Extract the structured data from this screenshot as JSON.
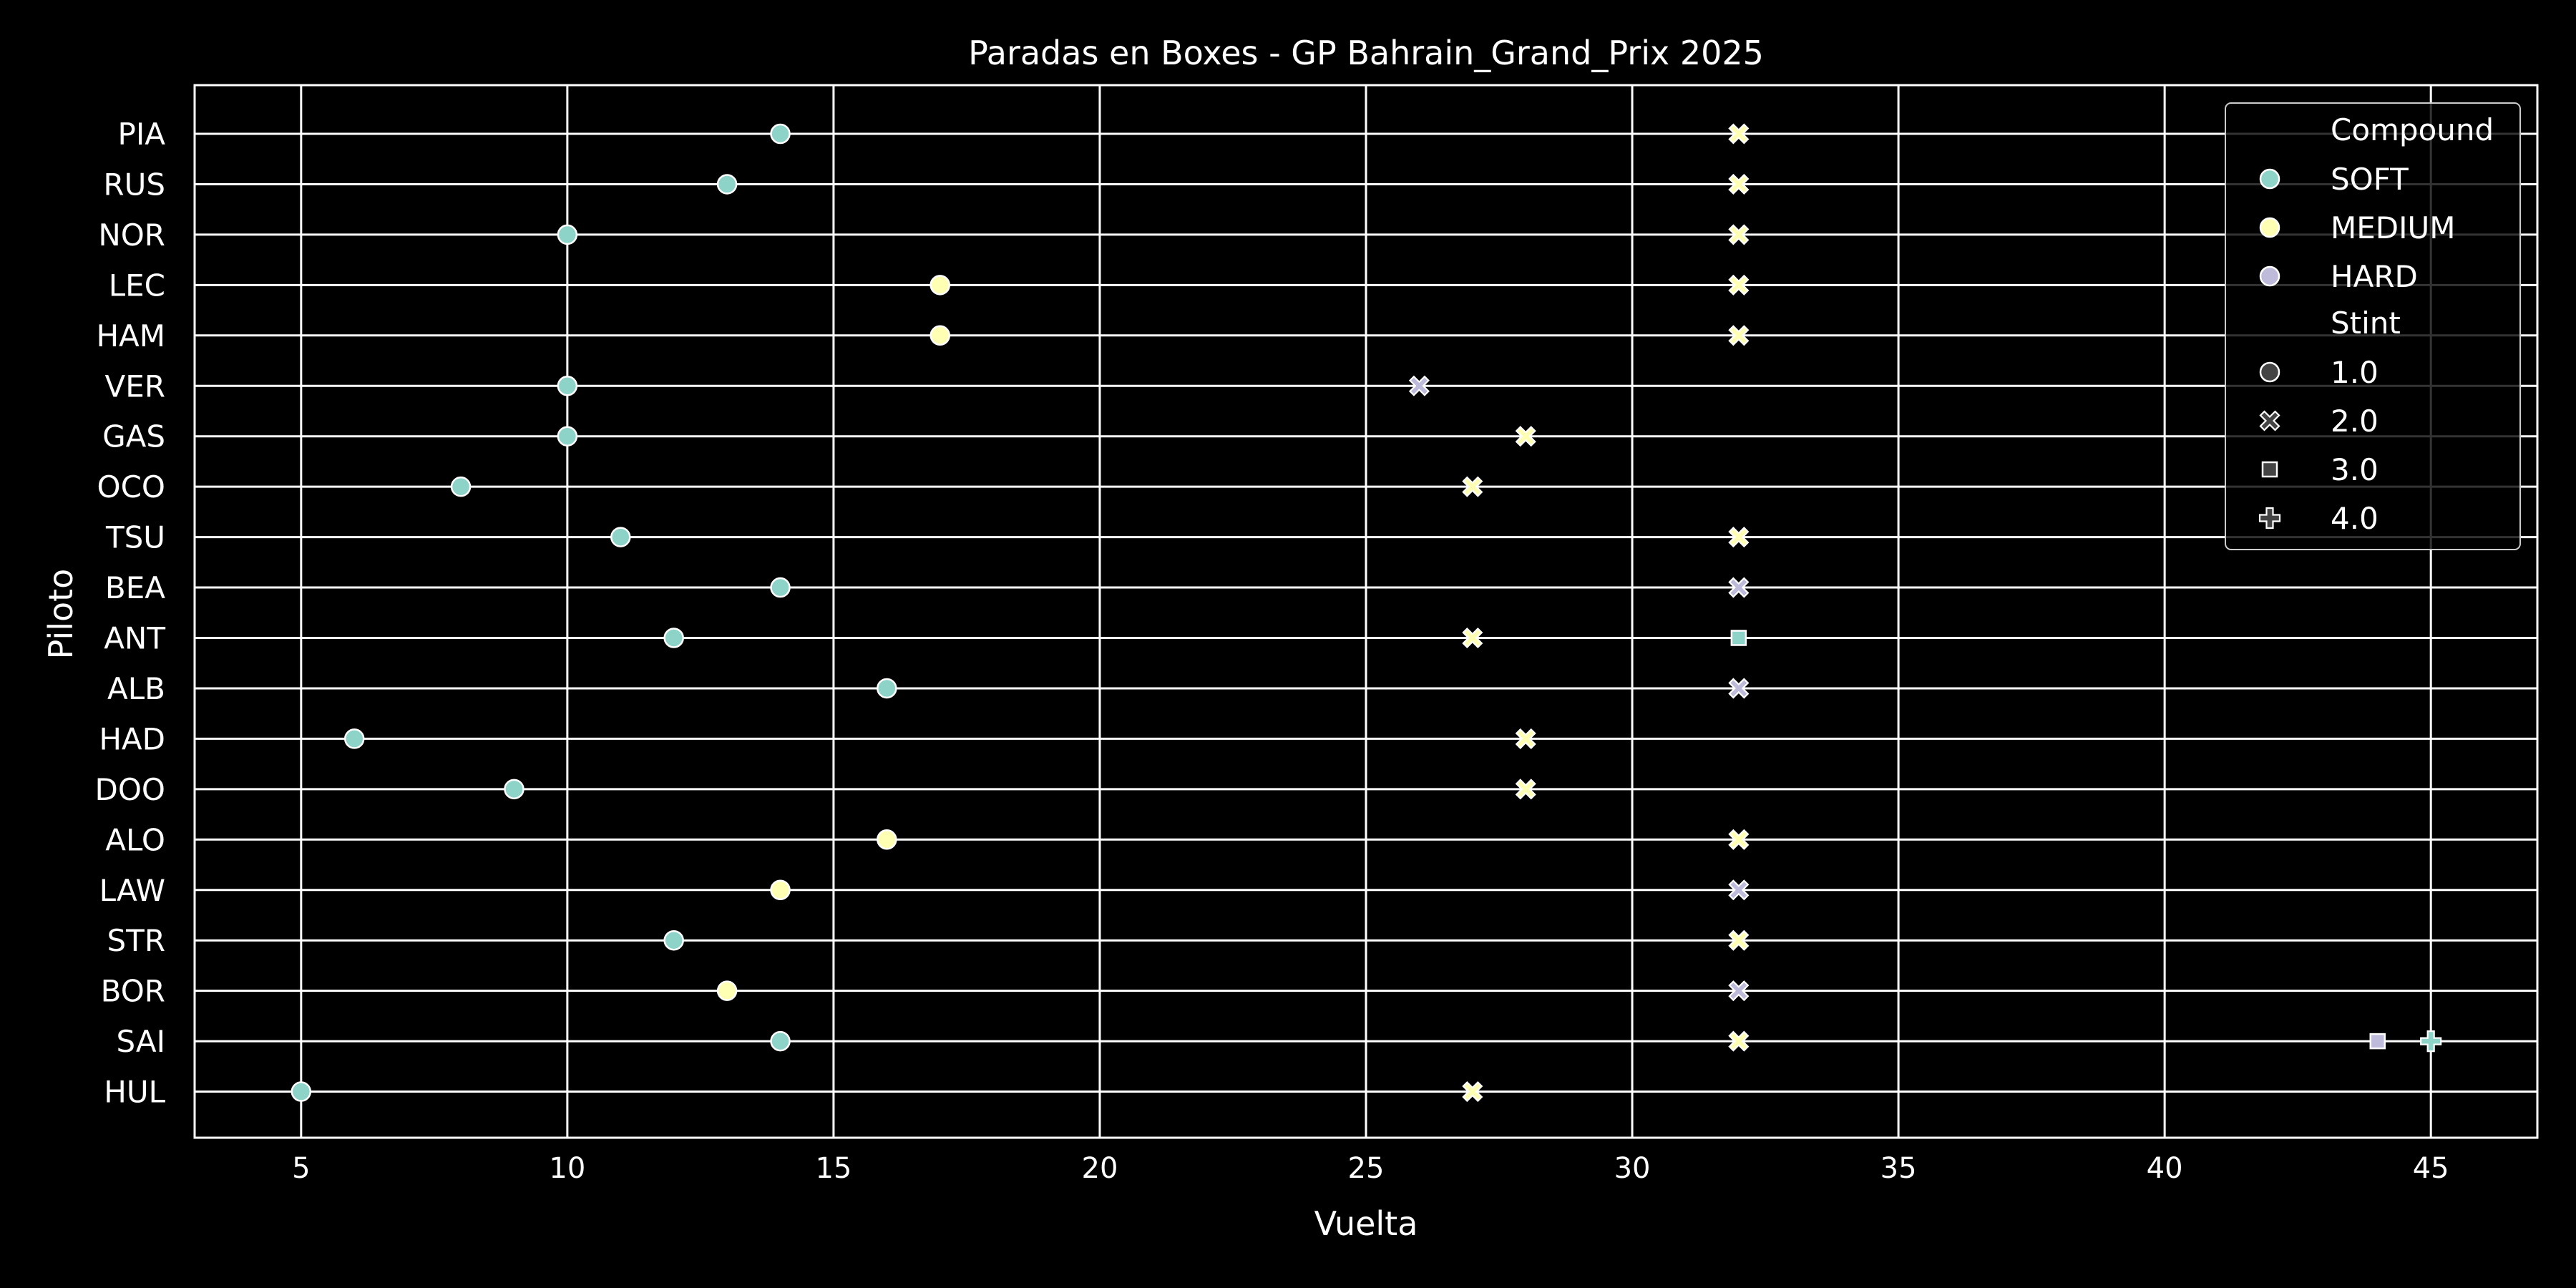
{
  "chart_data": {
    "type": "scatter",
    "title": "Paradas en Boxes - GP Bahrain_Grand_Prix 2025",
    "xlabel": "Vuelta",
    "ylabel": "Piloto",
    "xlim": [
      3,
      47
    ],
    "xticks": [
      5,
      10,
      15,
      20,
      25,
      30,
      35,
      40,
      45
    ],
    "grid": true,
    "legend_position": "top-right",
    "categories": [
      "PIA",
      "RUS",
      "NOR",
      "LEC",
      "HAM",
      "VER",
      "GAS",
      "OCO",
      "TSU",
      "BEA",
      "ANT",
      "ALB",
      "HAD",
      "DOO",
      "ALO",
      "LAW",
      "STR",
      "BOR",
      "SAI",
      "HUL"
    ],
    "colors": {
      "SOFT": "#8dd3c7",
      "MEDIUM": "#ffffb3",
      "HARD": "#bebada",
      "background": "#000000",
      "grid": "#ffffff"
    },
    "legend": {
      "hue_title": "Compound",
      "hue_items": [
        "SOFT",
        "MEDIUM",
        "HARD"
      ],
      "style_title": "Stint",
      "style_items": [
        {
          "label": "1.0",
          "marker": "circle"
        },
        {
          "label": "2.0",
          "marker": "x"
        },
        {
          "label": "3.0",
          "marker": "square"
        },
        {
          "label": "4.0",
          "marker": "plus"
        }
      ]
    },
    "points": [
      {
        "driver": "PIA",
        "lap": 14,
        "compound": "SOFT",
        "stint": 1.0
      },
      {
        "driver": "PIA",
        "lap": 32,
        "compound": "MEDIUM",
        "stint": 2.0
      },
      {
        "driver": "RUS",
        "lap": 13,
        "compound": "SOFT",
        "stint": 1.0
      },
      {
        "driver": "RUS",
        "lap": 32,
        "compound": "MEDIUM",
        "stint": 2.0
      },
      {
        "driver": "NOR",
        "lap": 10,
        "compound": "SOFT",
        "stint": 1.0
      },
      {
        "driver": "NOR",
        "lap": 32,
        "compound": "MEDIUM",
        "stint": 2.0
      },
      {
        "driver": "LEC",
        "lap": 17,
        "compound": "MEDIUM",
        "stint": 1.0
      },
      {
        "driver": "LEC",
        "lap": 32,
        "compound": "MEDIUM",
        "stint": 2.0
      },
      {
        "driver": "HAM",
        "lap": 17,
        "compound": "MEDIUM",
        "stint": 1.0
      },
      {
        "driver": "HAM",
        "lap": 32,
        "compound": "MEDIUM",
        "stint": 2.0
      },
      {
        "driver": "VER",
        "lap": 10,
        "compound": "SOFT",
        "stint": 1.0
      },
      {
        "driver": "VER",
        "lap": 26,
        "compound": "HARD",
        "stint": 2.0
      },
      {
        "driver": "GAS",
        "lap": 10,
        "compound": "SOFT",
        "stint": 1.0
      },
      {
        "driver": "GAS",
        "lap": 28,
        "compound": "MEDIUM",
        "stint": 2.0
      },
      {
        "driver": "OCO",
        "lap": 8,
        "compound": "SOFT",
        "stint": 1.0
      },
      {
        "driver": "OCO",
        "lap": 27,
        "compound": "MEDIUM",
        "stint": 2.0
      },
      {
        "driver": "TSU",
        "lap": 11,
        "compound": "SOFT",
        "stint": 1.0
      },
      {
        "driver": "TSU",
        "lap": 32,
        "compound": "MEDIUM",
        "stint": 2.0
      },
      {
        "driver": "BEA",
        "lap": 14,
        "compound": "SOFT",
        "stint": 1.0
      },
      {
        "driver": "BEA",
        "lap": 32,
        "compound": "HARD",
        "stint": 2.0
      },
      {
        "driver": "ANT",
        "lap": 12,
        "compound": "SOFT",
        "stint": 1.0
      },
      {
        "driver": "ANT",
        "lap": 27,
        "compound": "MEDIUM",
        "stint": 2.0
      },
      {
        "driver": "ANT",
        "lap": 32,
        "compound": "SOFT",
        "stint": 3.0
      },
      {
        "driver": "ALB",
        "lap": 16,
        "compound": "SOFT",
        "stint": 1.0
      },
      {
        "driver": "ALB",
        "lap": 32,
        "compound": "HARD",
        "stint": 2.0
      },
      {
        "driver": "HAD",
        "lap": 6,
        "compound": "SOFT",
        "stint": 1.0
      },
      {
        "driver": "HAD",
        "lap": 28,
        "compound": "MEDIUM",
        "stint": 2.0
      },
      {
        "driver": "DOO",
        "lap": 9,
        "compound": "SOFT",
        "stint": 1.0
      },
      {
        "driver": "DOO",
        "lap": 28,
        "compound": "MEDIUM",
        "stint": 2.0
      },
      {
        "driver": "ALO",
        "lap": 16,
        "compound": "MEDIUM",
        "stint": 1.0
      },
      {
        "driver": "ALO",
        "lap": 32,
        "compound": "MEDIUM",
        "stint": 2.0
      },
      {
        "driver": "LAW",
        "lap": 14,
        "compound": "MEDIUM",
        "stint": 1.0
      },
      {
        "driver": "LAW",
        "lap": 32,
        "compound": "HARD",
        "stint": 2.0
      },
      {
        "driver": "STR",
        "lap": 12,
        "compound": "SOFT",
        "stint": 1.0
      },
      {
        "driver": "STR",
        "lap": 32,
        "compound": "MEDIUM",
        "stint": 2.0
      },
      {
        "driver": "BOR",
        "lap": 13,
        "compound": "MEDIUM",
        "stint": 1.0
      },
      {
        "driver": "BOR",
        "lap": 32,
        "compound": "HARD",
        "stint": 2.0
      },
      {
        "driver": "SAI",
        "lap": 14,
        "compound": "SOFT",
        "stint": 1.0
      },
      {
        "driver": "SAI",
        "lap": 32,
        "compound": "MEDIUM",
        "stint": 2.0
      },
      {
        "driver": "SAI",
        "lap": 44,
        "compound": "HARD",
        "stint": 3.0
      },
      {
        "driver": "SAI",
        "lap": 45,
        "compound": "SOFT",
        "stint": 4.0
      },
      {
        "driver": "HUL",
        "lap": 5,
        "compound": "SOFT",
        "stint": 1.0
      },
      {
        "driver": "HUL",
        "lap": 27,
        "compound": "MEDIUM",
        "stint": 2.0
      }
    ]
  }
}
